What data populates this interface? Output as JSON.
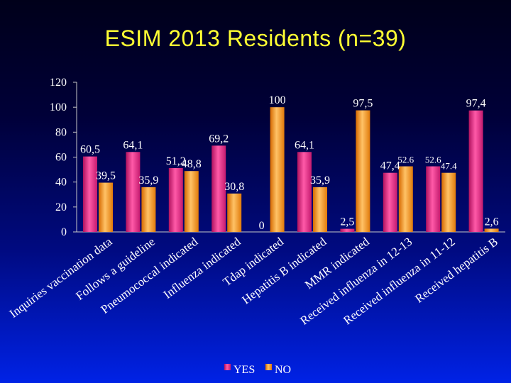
{
  "title": "ESIM 2013 Residents (n=39)",
  "chart_data": {
    "type": "bar",
    "categories": [
      "Inquiries vaccination data",
      "Follows a guideline",
      "Pneumococcal indicated",
      "Influenza indicated",
      "Tdap indicated",
      "Hepatitis B indicated",
      "MMR indicated",
      "Received influenza in 12-13",
      "Received influenza in 11-12",
      "Received hepatitis B"
    ],
    "series": [
      {
        "name": "YES",
        "color": "#e8308a",
        "values": [
          60.5,
          64.1,
          51.2,
          69.2,
          0,
          64.1,
          2.5,
          47.4,
          52.6,
          97.4
        ],
        "labels": [
          "60,5",
          "64,1",
          "51,2",
          "69,2",
          "0",
          "64,1",
          "2,5",
          "47,4",
          "52.6",
          "97,4"
        ]
      },
      {
        "name": "NO",
        "color": "#ff9a1a",
        "values": [
          39.5,
          35.9,
          48.8,
          30.8,
          100,
          35.9,
          97.5,
          52.6,
          47.4,
          2.6
        ],
        "labels": [
          "39,5",
          "35,9",
          "48,8",
          "30,8",
          "100",
          "35,9",
          "97,5",
          "52.6",
          "47.4",
          "2,6"
        ]
      }
    ],
    "yticks": [
      "0",
      "20",
      "40",
      "60",
      "80",
      "100",
      "120"
    ],
    "ylim": [
      0,
      120
    ],
    "legend_position": "bottom",
    "grid": false
  }
}
